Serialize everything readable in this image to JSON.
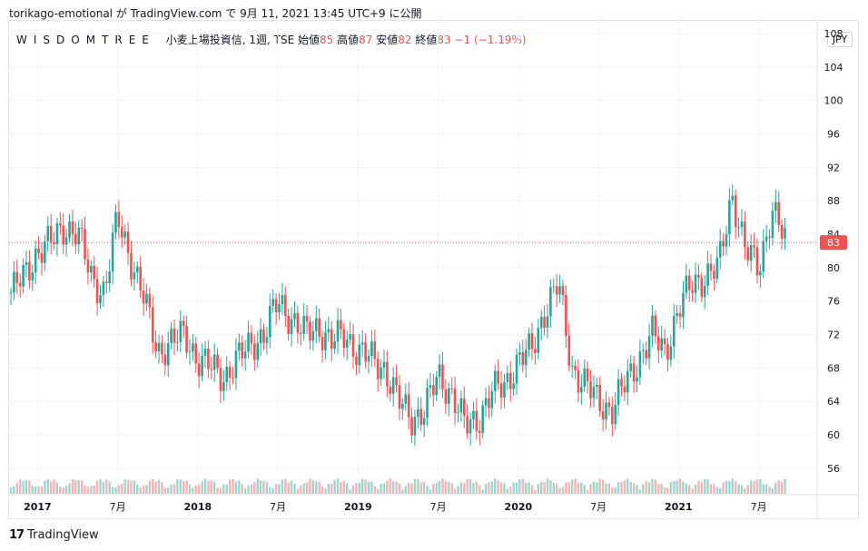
{
  "header": {
    "text": "torikago-emotional が TradingView.com で 9月 11, 2021 13:45 UTC+9 に公開"
  },
  "legend": {
    "brand": "WISDOMTREE",
    "name": "小麦上場投資信, 1週, TSE",
    "open_label": "始値",
    "open_value": "85",
    "high_label": "高値",
    "high_value": "87",
    "low_label": "安値",
    "low_value": "82",
    "close_label": "終値",
    "close_value": "83",
    "change": "−1 (−1.19%)"
  },
  "currency": "JPY",
  "last_price_label": "83",
  "footer": {
    "logo": "17",
    "brand": "TradingView"
  },
  "colors": {
    "up": "#26a69a",
    "down": "#ef5350",
    "up_vol": "#9fd6cf",
    "down_vol": "#f6b5b3"
  },
  "chart_data": {
    "type": "candlestick",
    "y_ticks": [
      56,
      60,
      64,
      68,
      72,
      76,
      80,
      84,
      88,
      92,
      96,
      100,
      104,
      108
    ],
    "x_ticks": [
      "2017",
      "7月",
      "2018",
      "7月",
      "2019",
      "7月",
      "2020",
      "7月",
      "2021",
      "7月"
    ],
    "x_tick_dates": [
      "2017-01",
      "2017-07",
      "2018-01",
      "2018-07",
      "2019-01",
      "2019-07",
      "2020-01",
      "2020-07",
      "2021-01",
      "2021-07"
    ],
    "x_range": [
      "2016-11",
      "2021-09"
    ],
    "ylim": [
      52.5,
      108
    ],
    "last_price": 83,
    "series_close": [
      [
        "2016-11",
        77
      ],
      [
        "2016-12",
        79
      ],
      [
        "2017-01",
        82
      ],
      [
        "2017-02",
        83
      ],
      [
        "2017-03",
        85
      ],
      [
        "2017-04",
        84
      ],
      [
        "2017-05",
        79
      ],
      [
        "2017-06",
        77
      ],
      [
        "2017-07",
        86
      ],
      [
        "2017-08",
        81
      ],
      [
        "2017-09",
        76
      ],
      [
        "2017-10",
        70
      ],
      [
        "2017-11",
        71
      ],
      [
        "2017-12",
        72
      ],
      [
        "2018-01",
        69
      ],
      [
        "2018-02",
        68
      ],
      [
        "2018-03",
        67
      ],
      [
        "2018-04",
        69
      ],
      [
        "2018-05",
        71
      ],
      [
        "2018-06",
        72
      ],
      [
        "2018-07",
        76
      ],
      [
        "2018-08",
        74
      ],
      [
        "2018-09",
        72
      ],
      [
        "2018-10",
        73
      ],
      [
        "2018-11",
        71
      ],
      [
        "2018-12",
        72
      ],
      [
        "2019-01",
        70
      ],
      [
        "2019-02",
        69
      ],
      [
        "2019-03",
        68
      ],
      [
        "2019-04",
        64
      ],
      [
        "2019-05",
        62
      ],
      [
        "2019-06",
        63
      ],
      [
        "2019-07",
        67
      ],
      [
        "2019-08",
        65
      ],
      [
        "2019-09",
        61
      ],
      [
        "2019-10",
        62
      ],
      [
        "2019-11",
        65
      ],
      [
        "2019-12",
        66
      ],
      [
        "2020-01",
        69
      ],
      [
        "2020-02",
        70
      ],
      [
        "2020-03",
        75
      ],
      [
        "2020-04",
        78
      ],
      [
        "2020-05",
        68
      ],
      [
        "2020-06",
        66
      ],
      [
        "2020-07",
        64
      ],
      [
        "2020-08",
        63
      ],
      [
        "2020-09",
        66
      ],
      [
        "2020-10",
        69
      ],
      [
        "2020-11",
        72
      ],
      [
        "2020-12",
        70
      ],
      [
        "2021-01",
        75
      ],
      [
        "2021-02",
        78
      ],
      [
        "2021-03",
        79
      ],
      [
        "2021-04",
        80
      ],
      [
        "2021-05",
        89
      ],
      [
        "2021-06",
        82
      ],
      [
        "2021-07",
        80
      ],
      [
        "2021-08",
        87
      ],
      [
        "2021-09",
        83
      ]
    ]
  }
}
